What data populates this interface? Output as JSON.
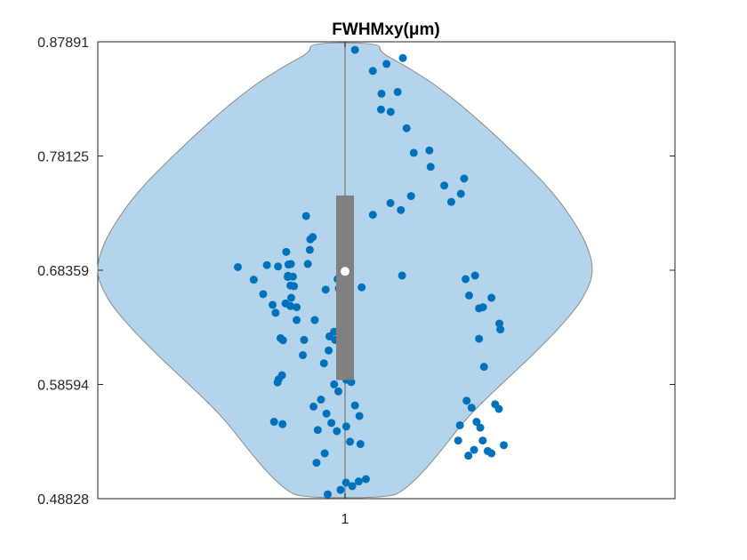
{
  "chart_data": {
    "type": "violin",
    "title": "FWHMxy(μm)",
    "xlabel": "",
    "ylabel": "",
    "categories": [
      "1"
    ],
    "ylim": [
      0.48828,
      0.87891
    ],
    "yticks": [
      "0.48828",
      "0.58594",
      "0.68359",
      "0.78125",
      "0.87891"
    ],
    "xticks": [
      "1"
    ],
    "colors": {
      "violin_fill": "#b3d4ea",
      "violin_edge": "#8a8a8a",
      "points": "#0072bd",
      "box": "#808080",
      "median": "#ffffff"
    },
    "box": {
      "q1": 0.5897,
      "median": 0.6826,
      "q3": 0.7475
    },
    "violin_profile": [
      [
        0.4891,
        0.18
      ],
      [
        0.496,
        0.24
      ],
      [
        0.51,
        0.31
      ],
      [
        0.53,
        0.39
      ],
      [
        0.56,
        0.5
      ],
      [
        0.59,
        0.65
      ],
      [
        0.62,
        0.8
      ],
      [
        0.65,
        0.93
      ],
      [
        0.67,
        0.985
      ],
      [
        0.6836,
        1.0
      ],
      [
        0.7,
        0.985
      ],
      [
        0.72,
        0.94
      ],
      [
        0.75,
        0.84
      ],
      [
        0.78,
        0.7
      ],
      [
        0.81,
        0.55
      ],
      [
        0.84,
        0.38
      ],
      [
        0.86,
        0.23
      ],
      [
        0.87,
        0.14
      ],
      [
        0.8781,
        0.14
      ]
    ],
    "points": [
      [
        -0.432,
        0.6863
      ],
      [
        -0.368,
        0.6755
      ],
      [
        -0.33,
        0.6632
      ],
      [
        -0.315,
        0.688
      ],
      [
        -0.28,
        0.6472
      ],
      [
        -0.26,
        0.6255
      ],
      [
        -0.268,
        0.5903
      ],
      [
        -0.25,
        0.6237
      ],
      [
        -0.254,
        0.5938
      ],
      [
        -0.272,
        0.5877
      ],
      [
        -0.24,
        0.6552
      ],
      [
        -0.292,
        0.654
      ],
      [
        -0.252,
        0.552
      ],
      [
        -0.286,
        0.554
      ],
      [
        -0.228,
        0.6885
      ],
      [
        -0.27,
        0.6868
      ],
      [
        -0.237,
        0.6993
      ],
      [
        -0.23,
        0.6788
      ],
      [
        -0.218,
        0.6889
      ],
      [
        -0.231,
        0.6778
      ],
      [
        -0.21,
        0.6781
      ],
      [
        -0.22,
        0.6705
      ],
      [
        -0.217,
        0.66
      ],
      [
        -0.22,
        0.653
      ],
      [
        -0.206,
        0.67
      ],
      [
        -0.195,
        0.641
      ],
      [
        -0.195,
        0.652
      ],
      [
        -0.17,
        0.611
      ],
      [
        -0.157,
        0.73
      ],
      [
        -0.165,
        0.624
      ],
      [
        -0.15,
        0.689
      ],
      [
        -0.14,
        0.71
      ],
      [
        -0.122,
        0.641
      ],
      [
        -0.13,
        0.712
      ],
      [
        -0.142,
        0.701
      ],
      [
        -0.085,
        0.604
      ],
      [
        -0.078,
        0.667
      ],
      [
        -0.063,
        0.627
      ],
      [
        -0.066,
        0.615
      ],
      [
        -0.025,
        0.668
      ],
      [
        -0.02,
        0.685
      ],
      [
        -0.044,
        0.631
      ],
      [
        -0.03,
        0.676
      ],
      [
        0.01,
        0.689
      ],
      [
        0.015,
        0.696
      ],
      [
        0.067,
        0.669
      ],
      [
        -0.04,
        0.624
      ],
      [
        -0.044,
        0.586
      ],
      [
        -0.115,
        0.519
      ],
      [
        -0.097,
        0.573
      ],
      [
        -0.075,
        0.561
      ],
      [
        -0.027,
        0.58
      ],
      [
        0.005,
        0.55
      ],
      [
        0.02,
        0.537
      ],
      [
        0.062,
        0.535
      ],
      [
        -0.11,
        0.547
      ],
      [
        -0.055,
        0.553
      ],
      [
        -0.033,
        0.546
      ],
      [
        0.005,
        0.59
      ],
      [
        0.025,
        0.588
      ],
      [
        0.04,
        0.568
      ],
      [
        0.058,
        0.559
      ],
      [
        -0.082,
        0.527
      ],
      [
        -0.07,
        0.492
      ],
      [
        -0.018,
        0.4958
      ],
      [
        0.004,
        0.502
      ],
      [
        0.029,
        0.499
      ],
      [
        0.055,
        0.503
      ],
      [
        0.084,
        0.505
      ],
      [
        -0.127,
        0.567
      ],
      [
        0.04,
        0.872
      ],
      [
        0.145,
        0.821
      ],
      [
        0.184,
        0.819
      ],
      [
        0.112,
        0.854
      ],
      [
        0.147,
        0.8345
      ],
      [
        0.167,
        0.86
      ],
      [
        0.233,
        0.865
      ],
      [
        0.212,
        0.836
      ],
      [
        0.248,
        0.805
      ],
      [
        0.112,
        0.731
      ],
      [
        0.183,
        0.741
      ],
      [
        0.225,
        0.735
      ],
      [
        0.23,
        0.679
      ],
      [
        0.277,
        0.784
      ],
      [
        0.266,
        0.747
      ],
      [
        0.34,
        0.786
      ],
      [
        0.345,
        0.772
      ],
      [
        0.4,
        0.756
      ],
      [
        0.428,
        0.742
      ],
      [
        0.467,
        0.749
      ],
      [
        0.48,
        0.762
      ],
      [
        0.486,
        0.676
      ],
      [
        0.5,
        0.662
      ],
      [
        0.524,
        0.679
      ],
      [
        0.54,
        0.651
      ],
      [
        0.556,
        0.652
      ],
      [
        0.59,
        0.66
      ],
      [
        0.626,
        0.633
      ],
      [
        0.622,
        0.638
      ],
      [
        0.605,
        0.569
      ],
      [
        0.62,
        0.565
      ],
      [
        0.54,
        0.625
      ],
      [
        0.56,
        0.601
      ],
      [
        0.49,
        0.572
      ],
      [
        0.51,
        0.566
      ],
      [
        0.53,
        0.554
      ],
      [
        0.545,
        0.549
      ],
      [
        0.575,
        0.529
      ],
      [
        0.59,
        0.527
      ],
      [
        0.456,
        0.538
      ],
      [
        0.463,
        0.551
      ],
      [
        0.497,
        0.525
      ],
      [
        0.52,
        0.53
      ],
      [
        0.555,
        0.538
      ],
      [
        0.64,
        0.534
      ]
    ]
  }
}
